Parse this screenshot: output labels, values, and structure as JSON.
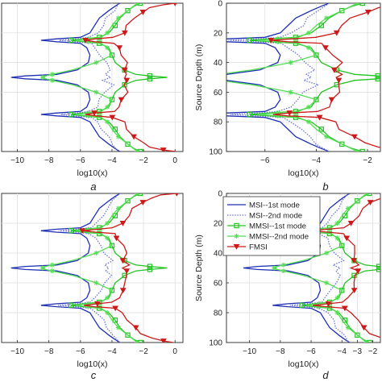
{
  "figure": {
    "panel_labels": [
      "a",
      "b",
      "c",
      "d"
    ]
  },
  "chart_data": [
    {
      "panel": "a",
      "type": "line",
      "xlabel": "log10(x)",
      "ylabel": "",
      "xlim": [
        -11,
        0.5
      ],
      "ylim": [
        100,
        0
      ],
      "xticks": [
        -10,
        -8,
        -6,
        -4,
        -2,
        0
      ],
      "yticks": [],
      "grid": true,
      "y_reversed": true
    },
    {
      "panel": "b",
      "type": "line",
      "xlabel": "log10(x)",
      "ylabel": "Source Depth (m)",
      "xlim": [
        -7.5,
        -1.5
      ],
      "ylim": [
        100,
        0
      ],
      "xticks": [
        -6,
        -4,
        -2
      ],
      "yticks": [
        0,
        20,
        40,
        60,
        80,
        100
      ],
      "grid": true,
      "y_reversed": true
    },
    {
      "panel": "c",
      "type": "line",
      "xlabel": "log10(x)",
      "ylabel": "",
      "xlim": [
        -11,
        0.5
      ],
      "ylim": [
        100,
        0
      ],
      "xticks": [
        -10,
        -8,
        -6,
        -4,
        -2,
        0
      ],
      "yticks": [],
      "grid": true,
      "y_reversed": true
    },
    {
      "panel": "d",
      "type": "line",
      "xlabel": "log10(x)",
      "ylabel": "Source Depth (m)",
      "xlim": [
        -11.5,
        -1.5
      ],
      "ylim": [
        100,
        0
      ],
      "xticks": [
        -10,
        -8,
        -6,
        -4,
        -3,
        -2
      ],
      "yticks": [
        0,
        20,
        40,
        60,
        80,
        100
      ],
      "grid": true,
      "y_reversed": true,
      "legend": {
        "placement": "top-left",
        "entries": [
          "MSI--1st mode",
          "MSI--2nd mode",
          "MMSI--1st mode",
          "MMSI--2nd mode",
          "FMSI"
        ]
      }
    }
  ],
  "series_shapes": {
    "MSI--1st mode": {
      "color": "#1f2fb5",
      "linestyle": "solid",
      "marker": "none",
      "depth": [
        0,
        2,
        5,
        10,
        15,
        20,
        23,
        24,
        25,
        26,
        27,
        30,
        35,
        40,
        45,
        48,
        49,
        50,
        51,
        52,
        55,
        60,
        65,
        70,
        73,
        74,
        75,
        76,
        77,
        80,
        85,
        90,
        95,
        98,
        100
      ],
      "log10x": [
        -3.5,
        -3.8,
        -4.2,
        -4.8,
        -5.1,
        -5.4,
        -6.0,
        -7.5,
        -8.5,
        -7.5,
        -6.0,
        -5.6,
        -5.4,
        -5.5,
        -6.2,
        -7.5,
        -9.5,
        -10.4,
        -9.5,
        -7.5,
        -6.2,
        -5.5,
        -5.4,
        -5.6,
        -6.0,
        -7.5,
        -8.5,
        -7.5,
        -6.0,
        -5.4,
        -5.1,
        -4.8,
        -4.2,
        -3.8,
        -3.5
      ]
    },
    "MSI--2nd mode": {
      "color": "#6b74d6",
      "linestyle": "dotted",
      "marker": "none",
      "depth": [
        0,
        5,
        10,
        15,
        20,
        23,
        24,
        25,
        26,
        27,
        30,
        35,
        40,
        45,
        48,
        50,
        52,
        55,
        60,
        65,
        70,
        73,
        74,
        75,
        76,
        77,
        80,
        85,
        90,
        95,
        100
      ],
      "log10x": [
        -3.6,
        -3.9,
        -4.3,
        -4.6,
        -4.9,
        -5.4,
        -6.3,
        -7.3,
        -6.3,
        -5.4,
        -5.0,
        -4.8,
        -4.4,
        -4.0,
        -4.5,
        -4.1,
        -4.5,
        -4.0,
        -4.4,
        -4.8,
        -5.0,
        -5.4,
        -6.3,
        -7.3,
        -6.3,
        -5.4,
        -4.9,
        -4.6,
        -4.3,
        -3.9,
        -3.6
      ]
    },
    "MMSI--1st mode": {
      "color": "#22c322",
      "linestyle": "solid",
      "marker": "square",
      "depth": [
        0,
        2,
        5,
        10,
        15,
        20,
        23,
        24,
        25,
        26,
        27,
        30,
        35,
        40,
        45,
        48,
        49,
        50,
        51,
        52,
        55,
        60,
        65,
        70,
        73,
        74,
        75,
        76,
        77,
        80,
        85,
        90,
        95,
        98,
        100
      ],
      "log10x": [
        -2.2,
        -2.6,
        -3.0,
        -3.5,
        -3.8,
        -4.2,
        -4.8,
        -5.8,
        -6.6,
        -5.8,
        -4.8,
        -4.2,
        -4.0,
        -3.8,
        -3.2,
        -2.5,
        -1.6,
        -0.5,
        -1.6,
        -2.5,
        -3.2,
        -3.8,
        -4.0,
        -4.2,
        -4.8,
        -5.8,
        -6.6,
        -5.8,
        -4.8,
        -4.2,
        -3.8,
        -3.5,
        -3.0,
        -2.6,
        -2.2
      ]
    },
    "MMSI--2nd mode": {
      "color": "#55dd55",
      "linestyle": "solid",
      "marker": "asterisk",
      "depth": [
        0,
        5,
        10,
        15,
        20,
        23,
        24,
        25,
        26,
        27,
        30,
        35,
        40,
        45,
        48,
        49,
        50,
        51,
        52,
        55,
        60,
        65,
        70,
        73,
        74,
        75,
        76,
        77,
        80,
        85,
        90,
        95,
        100
      ],
      "log10x": [
        -2.4,
        -3.0,
        -3.6,
        -4.0,
        -4.3,
        -4.7,
        -5.5,
        -6.3,
        -5.5,
        -4.7,
        -4.3,
        -4.0,
        -5.0,
        -6.5,
        -7.8,
        -8.2,
        -8.4,
        -8.2,
        -7.8,
        -6.5,
        -5.0,
        -4.0,
        -4.3,
        -4.7,
        -5.5,
        -6.3,
        -5.5,
        -4.7,
        -4.3,
        -4.0,
        -3.6,
        -3.0,
        -2.4
      ]
    },
    "FMSI": {
      "color": "#cc1a1a",
      "linestyle": "solid",
      "marker": "triangle-down",
      "depth": [
        0,
        1,
        3,
        6,
        10,
        15,
        20,
        23,
        24,
        25,
        26,
        27,
        30,
        35,
        40,
        45,
        48,
        50,
        52,
        55,
        60,
        65,
        70,
        73,
        74,
        75,
        76,
        77,
        80,
        85,
        90,
        94,
        97,
        99,
        100
      ],
      "log10x": [
        0.0,
        -0.8,
        -1.5,
        -2.1,
        -2.6,
        -3.0,
        -3.3,
        -3.9,
        -5.0,
        -5.8,
        -5.0,
        -3.9,
        -3.6,
        -3.3,
        -3.1,
        -3.2,
        -3.0,
        -3.3,
        -3.0,
        -3.2,
        -3.1,
        -3.3,
        -3.6,
        -3.9,
        -5.0,
        -5.8,
        -5.0,
        -3.9,
        -3.3,
        -3.0,
        -2.6,
        -2.1,
        -1.5,
        -0.8,
        0.0
      ]
    }
  }
}
